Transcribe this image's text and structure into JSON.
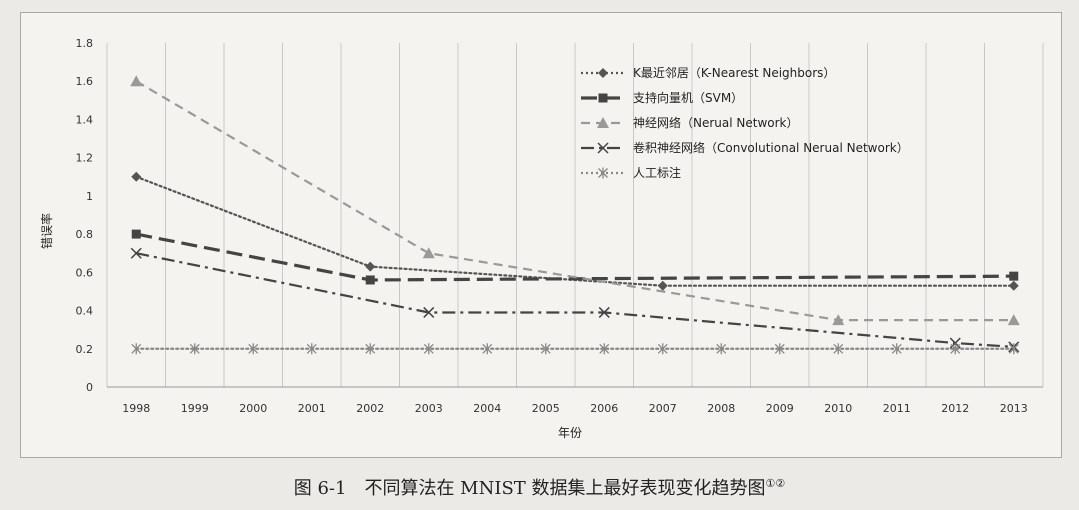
{
  "chart_data": {
    "type": "line",
    "xlabel": "年份",
    "ylabel": "错误率",
    "ylim": [
      0,
      1.8
    ],
    "yticks": [
      "0",
      "0.2",
      "0.4",
      "0.6",
      "0.8",
      "1",
      "1.2",
      "1.4",
      "1.6",
      "1.8"
    ],
    "categories": [
      "1998",
      "1999",
      "2000",
      "2001",
      "2002",
      "2003",
      "2004",
      "2005",
      "2006",
      "2007",
      "2008",
      "2009",
      "2010",
      "2011",
      "2012",
      "2013"
    ],
    "grid": "vertical",
    "legend": "top-right",
    "series": [
      {
        "name": "K最近邻居（K-Nearest Neighbors）",
        "color": "#555555",
        "style": "dotted",
        "marker": "diamond",
        "values": [
          1.1,
          null,
          null,
          null,
          0.63,
          null,
          null,
          null,
          null,
          0.53,
          null,
          null,
          null,
          null,
          null,
          0.53
        ]
      },
      {
        "name": "支持向量机（SVM）",
        "color": "#444444",
        "style": "long-dash",
        "marker": "square",
        "values": [
          0.8,
          null,
          null,
          null,
          0.56,
          null,
          null,
          null,
          null,
          null,
          null,
          null,
          null,
          null,
          null,
          0.58
        ]
      },
      {
        "name": "神经网络（Nerual Network）",
        "color": "#999999",
        "style": "dash",
        "marker": "triangle",
        "values": [
          1.6,
          null,
          null,
          null,
          null,
          0.7,
          null,
          null,
          null,
          null,
          null,
          null,
          0.35,
          null,
          null,
          0.35
        ]
      },
      {
        "name": "卷积神经网络（Convolutional Nerual Network）",
        "color": "#444444",
        "style": "dash-dot",
        "marker": "x",
        "values": [
          0.7,
          null,
          null,
          null,
          null,
          0.39,
          null,
          null,
          0.39,
          null,
          null,
          null,
          null,
          null,
          0.23,
          0.21
        ]
      },
      {
        "name": "人工标注",
        "color": "#888888",
        "style": "dotted",
        "marker": "asterisk",
        "values": [
          0.2,
          0.2,
          0.2,
          0.2,
          0.2,
          0.2,
          0.2,
          0.2,
          0.2,
          0.2,
          0.2,
          0.2,
          0.2,
          0.2,
          0.2,
          0.2
        ]
      }
    ]
  },
  "caption": {
    "text": "图 6-1　不同算法在 MNIST 数据集上最好表现变化趋势图",
    "footnote_marks": "①②"
  }
}
